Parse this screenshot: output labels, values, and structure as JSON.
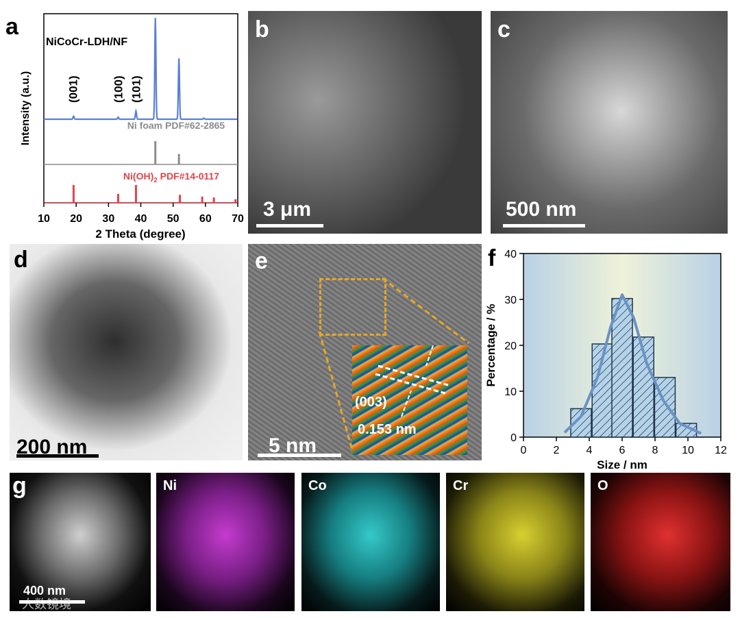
{
  "figure": {
    "labels": {
      "a": "a",
      "b": "b",
      "c": "c",
      "d": "d",
      "e": "e",
      "f": "f",
      "g": "g"
    },
    "scale_bars": {
      "b": "3 μm",
      "c": "500 nm",
      "d": "200 nm",
      "e": "5 nm",
      "g": "400 nm"
    },
    "hrtm": {
      "plane": "(003)",
      "spacing": "0.153 nm"
    },
    "eds": {
      "ni": "Ni",
      "co": "Co",
      "cr": "Cr",
      "o": "O"
    },
    "watermark": "人数镜境",
    "colors": {
      "xrd_line": "#5b7fd6",
      "ref_ni": "#8c8c8c",
      "ref_nioh": "#e0444b",
      "fit_curve": "#6a93c4",
      "bar_fill": "#b5d3e8"
    }
  },
  "chart_data": [
    {
      "type": "line",
      "panel": "a",
      "title": "NiCoCr-LDH/NF",
      "xlabel": "2 Theta (degree)",
      "ylabel": "Intensity (a.u.)",
      "xlim": [
        10,
        70
      ],
      "xticks": [
        10,
        20,
        30,
        40,
        50,
        60,
        70
      ],
      "peak_labels": [
        {
          "label": "(001)",
          "x": 19
        },
        {
          "label": "(100)",
          "x": 33
        },
        {
          "label": "(101)",
          "x": 38.5
        }
      ],
      "series": [
        {
          "name": "NiCoCr-LDH/NF",
          "peaks": [
            {
              "x": 19.2,
              "h": 0.03
            },
            {
              "x": 33,
              "h": 0.02
            },
            {
              "x": 38.5,
              "h": 0.08
            },
            {
              "x": 44.5,
              "h": 1.0
            },
            {
              "x": 51.8,
              "h": 0.6
            },
            {
              "x": 59.5,
              "h": 0.01
            }
          ]
        },
        {
          "name": "Ni foam PDF#62-2865",
          "peaks": [
            {
              "x": 44.5,
              "h": 1.0
            },
            {
              "x": 51.8,
              "h": 0.45
            }
          ]
        },
        {
          "name": "Ni(OH)2 PDF#14-0117",
          "peaks": [
            {
              "x": 19.2,
              "h": 1.0
            },
            {
              "x": 33.0,
              "h": 0.5
            },
            {
              "x": 38.5,
              "h": 1.0
            },
            {
              "x": 52.1,
              "h": 0.45
            },
            {
              "x": 59.0,
              "h": 0.35
            },
            {
              "x": 62.6,
              "h": 0.3
            },
            {
              "x": 69.3,
              "h": 0.2
            }
          ]
        }
      ],
      "ref_labels": {
        "ni": "Ni foam PDF#62-2865",
        "nioh_base": "Ni(OH)",
        "nioh_sub": "2",
        "nioh_rest": " PDF#14-0117"
      }
    },
    {
      "type": "bar",
      "panel": "f",
      "xlabel": "Size / nm",
      "ylabel": "Percentage / %",
      "xlim": [
        0,
        12
      ],
      "ylim": [
        0,
        40
      ],
      "xticks": [
        0,
        2,
        4,
        6,
        8,
        10,
        12
      ],
      "yticks": [
        0,
        10,
        20,
        30,
        40
      ],
      "bins": [
        {
          "x": 3.5,
          "value": 6.2
        },
        {
          "x": 4.8,
          "value": 20.3
        },
        {
          "x": 6.0,
          "value": 30.2
        },
        {
          "x": 7.3,
          "value": 21.8
        },
        {
          "x": 8.6,
          "value": 13.0
        },
        {
          "x": 9.9,
          "value": 3.0
        }
      ],
      "fit": [
        [
          2.5,
          1.0
        ],
        [
          3.5,
          4.5
        ],
        [
          4.5,
          13
        ],
        [
          5.3,
          24
        ],
        [
          6.0,
          31
        ],
        [
          6.7,
          26
        ],
        [
          7.5,
          16
        ],
        [
          8.5,
          8
        ],
        [
          9.5,
          3
        ],
        [
          10.8,
          0.8
        ]
      ]
    }
  ]
}
